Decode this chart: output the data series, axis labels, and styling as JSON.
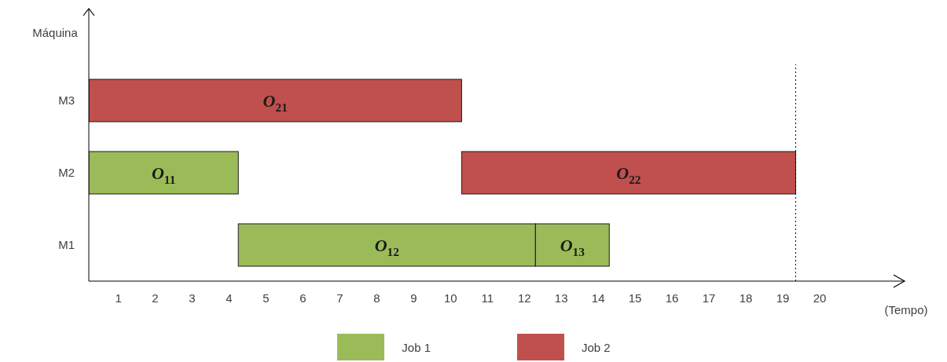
{
  "chart_data": {
    "type": "bar",
    "orientation": "horizontal",
    "categories": [
      "M3",
      "M2",
      "M1"
    ],
    "xlabel": "(Tempo)",
    "ylabel": "Máquina",
    "xlim": [
      0.2,
      22.3
    ],
    "xticks": [
      1,
      2,
      3,
      4,
      5,
      6,
      7,
      8,
      9,
      10,
      11,
      12,
      13,
      14,
      15,
      16,
      17,
      18,
      19,
      20
    ],
    "series": [
      {
        "name": "Job 1",
        "color": "#9bbb59",
        "values": [
          null,
          4.05,
          8.05
        ],
        "base": [
          null,
          0.2,
          4.25
        ]
      },
      {
        "color": "#9bbb59",
        "values": [
          null,
          null,
          2
        ],
        "base": [
          null,
          null,
          12.3
        ]
      },
      {
        "name": "Job 2",
        "color": "#c0504d",
        "values": [
          10.1,
          9.05,
          null
        ],
        "base": [
          0.2,
          10.3,
          null
        ]
      }
    ],
    "annotations": [
      "O$_{21}$",
      "O$_{11}$",
      "O$_{22}$",
      "O$_{12}$",
      "O$_{13}$"
    ],
    "ref_lines": [
      {
        "axis": "x",
        "value": 19.35,
        "line_style": "dotted",
        "color": "#000000"
      }
    ],
    "legend": "bottom",
    "grid": false
  }
}
